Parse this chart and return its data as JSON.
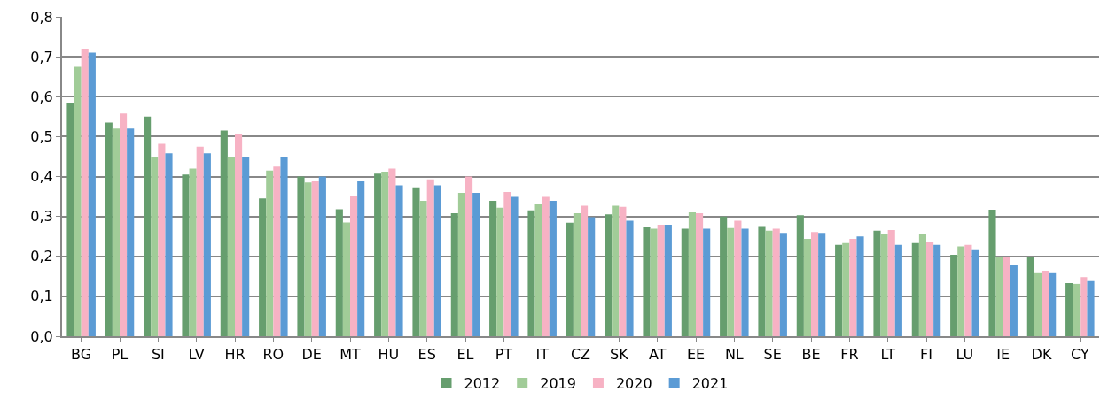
{
  "chart_data": {
    "type": "bar",
    "categories": [
      "BG",
      "PL",
      "SI",
      "LV",
      "HR",
      "RO",
      "DE",
      "MT",
      "HU",
      "ES",
      "EL",
      "PT",
      "IT",
      "CZ",
      "SK",
      "AT",
      "EE",
      "NL",
      "SE",
      "BE",
      "FR",
      "LT",
      "FI",
      "LU",
      "IE",
      "DK",
      "CY"
    ],
    "series": [
      {
        "name": "2012",
        "color": "#669e6e",
        "values": [
          0.585,
          0.535,
          0.55,
          0.405,
          0.515,
          0.345,
          0.4,
          0.318,
          0.407,
          0.373,
          0.308,
          0.339,
          0.315,
          0.284,
          0.305,
          0.274,
          0.269,
          0.3,
          0.276,
          0.303,
          0.229,
          0.264,
          0.233,
          0.204,
          0.317,
          0.199,
          0.133
        ]
      },
      {
        "name": "2019",
        "color": "#a1cc98",
        "values": [
          0.675,
          0.52,
          0.448,
          0.42,
          0.448,
          0.415,
          0.385,
          0.285,
          0.412,
          0.339,
          0.359,
          0.322,
          0.33,
          0.308,
          0.327,
          0.269,
          0.31,
          0.271,
          0.264,
          0.244,
          0.233,
          0.257,
          0.257,
          0.225,
          0.199,
          0.16,
          0.131
        ]
      },
      {
        "name": "2020",
        "color": "#f7b2c4",
        "values": [
          0.72,
          0.558,
          0.482,
          0.475,
          0.505,
          0.425,
          0.388,
          0.35,
          0.42,
          0.393,
          0.4,
          0.361,
          0.349,
          0.327,
          0.324,
          0.279,
          0.308,
          0.289,
          0.269,
          0.261,
          0.244,
          0.266,
          0.237,
          0.229,
          0.197,
          0.164,
          0.148
        ]
      },
      {
        "name": "2021",
        "color": "#5b9bd5",
        "values": [
          0.71,
          0.52,
          0.458,
          0.458,
          0.448,
          0.448,
          0.4,
          0.388,
          0.378,
          0.378,
          0.359,
          0.349,
          0.339,
          0.298,
          0.289,
          0.279,
          0.269,
          0.269,
          0.259,
          0.259,
          0.25,
          0.229,
          0.229,
          0.218,
          0.179,
          0.16,
          0.138
        ]
      }
    ],
    "ylim": [
      0,
      0.8
    ],
    "yticks": [
      {
        "value": 0,
        "label": "0,0"
      },
      {
        "value": 0.1,
        "label": "0,1"
      },
      {
        "value": 0.2,
        "label": "0,2"
      },
      {
        "value": 0.3,
        "label": "0,3"
      },
      {
        "value": 0.4,
        "label": "0,4"
      },
      {
        "value": 0.5,
        "label": "0,5"
      },
      {
        "value": 0.6,
        "label": "0,6"
      },
      {
        "value": 0.7,
        "label": "0,7"
      },
      {
        "value": 0.8,
        "label": "0,8"
      }
    ],
    "grid": "y",
    "legend": "bottom"
  }
}
